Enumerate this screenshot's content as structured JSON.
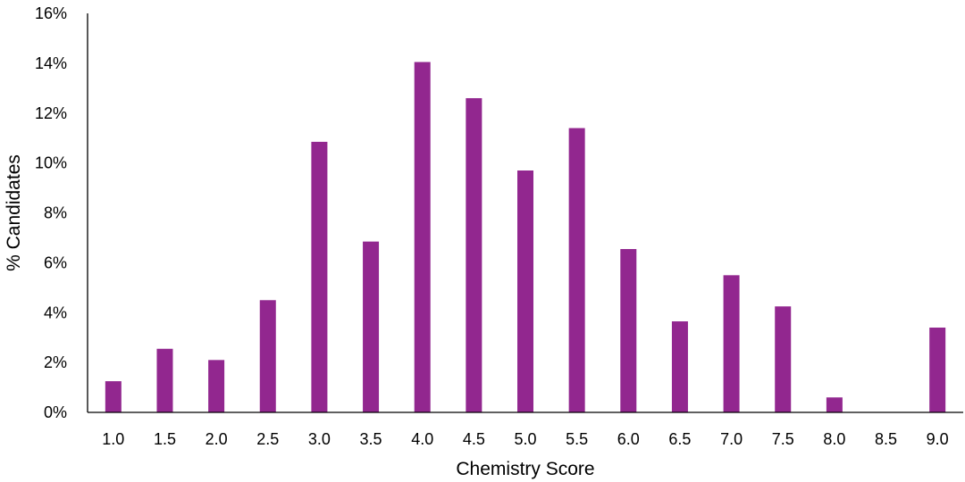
{
  "chart_data": {
    "type": "bar",
    "title": "",
    "xlabel": "Chemistry Score",
    "ylabel": "% Candidates",
    "categories": [
      "1.0",
      "1.5",
      "2.0",
      "2.5",
      "3.0",
      "3.5",
      "4.0",
      "4.5",
      "5.0",
      "5.5",
      "6.0",
      "6.5",
      "7.0",
      "7.5",
      "8.0",
      "8.5",
      "9.0"
    ],
    "values": [
      1.25,
      2.55,
      2.1,
      4.5,
      10.85,
      6.85,
      14.05,
      12.6,
      9.7,
      11.4,
      6.55,
      3.65,
      5.5,
      4.25,
      0.6,
      0,
      3.4
    ],
    "ylim": [
      0,
      16
    ],
    "yticks": [
      0,
      2,
      4,
      6,
      8,
      10,
      12,
      14,
      16
    ],
    "ytick_labels": [
      "0%",
      "2%",
      "4%",
      "6%",
      "8%",
      "10%",
      "12%",
      "14%",
      "16%"
    ],
    "bar_color": "#92278F",
    "grid": false,
    "legend": "none"
  }
}
